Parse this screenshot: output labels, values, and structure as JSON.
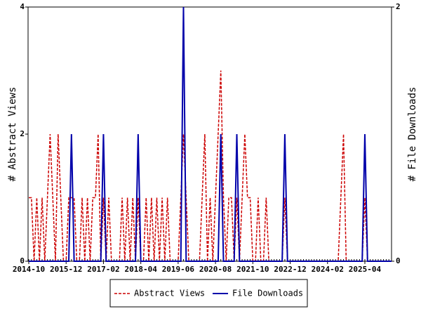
{
  "chart_data": {
    "type": "line",
    "x": [
      "2014-10",
      "2014-11",
      "2014-12",
      "2015-01",
      "2015-02",
      "2015-03",
      "2015-04",
      "2015-05",
      "2015-06",
      "2015-07",
      "2015-08",
      "2015-09",
      "2015-10",
      "2015-11",
      "2015-12",
      "2016-01",
      "2016-02",
      "2016-03",
      "2016-04",
      "2016-05",
      "2016-06",
      "2016-07",
      "2016-08",
      "2016-09",
      "2016-10",
      "2016-11",
      "2016-12",
      "2017-01",
      "2017-02",
      "2017-03",
      "2017-04",
      "2017-05",
      "2017-06",
      "2017-07",
      "2017-08",
      "2017-09",
      "2017-10",
      "2017-11",
      "2017-12",
      "2018-01",
      "2018-02",
      "2018-03",
      "2018-04",
      "2018-05",
      "2018-06",
      "2018-07",
      "2018-08",
      "2018-09",
      "2018-10",
      "2018-11",
      "2018-12",
      "2019-01",
      "2019-02",
      "2019-03",
      "2019-04",
      "2019-05",
      "2019-06",
      "2019-07",
      "2019-08",
      "2019-09",
      "2019-10",
      "2019-11",
      "2019-12",
      "2020-01",
      "2020-02",
      "2020-03",
      "2020-04",
      "2020-05",
      "2020-06",
      "2020-07",
      "2020-08",
      "2020-09",
      "2020-10",
      "2020-11",
      "2020-12",
      "2021-01",
      "2021-02",
      "2021-03",
      "2021-04",
      "2021-05",
      "2021-06",
      "2021-07",
      "2021-08",
      "2021-09",
      "2021-10",
      "2021-11",
      "2021-12",
      "2022-01",
      "2022-02",
      "2022-03",
      "2022-04",
      "2022-05",
      "2022-06",
      "2022-07",
      "2022-08",
      "2022-09",
      "2022-10",
      "2022-11",
      "2022-12",
      "2023-01",
      "2023-02",
      "2023-03",
      "2023-04",
      "2023-05",
      "2023-06",
      "2023-07",
      "2023-08",
      "2023-09",
      "2023-10",
      "2023-11",
      "2023-12",
      "2024-01",
      "2024-02",
      "2024-03",
      "2024-04",
      "2024-05",
      "2024-06",
      "2024-07",
      "2024-08",
      "2024-09",
      "2024-10",
      "2024-11",
      "2024-12",
      "2025-01",
      "2025-02",
      "2025-03",
      "2025-04",
      "2025-05",
      "2025-06",
      "2025-07",
      "2025-08",
      "2025-09",
      "2025-10",
      "2025-11",
      "2025-12",
      "2026-01",
      "2026-02"
    ],
    "xticks": [
      "2014-10",
      "2015-12",
      "2017-02",
      "2018-04",
      "2019-06",
      "2020-08",
      "2021-10",
      "2022-12",
      "2024-02",
      "2025-04"
    ],
    "ylabel": "# Abstract Views",
    "y2label": "# File Downloads",
    "ylim": [
      0,
      4
    ],
    "yticks": [
      0,
      2,
      4
    ],
    "y2lim": [
      0,
      2
    ],
    "y2ticks": [
      0,
      2
    ],
    "series": [
      {
        "name": "Abstract Views",
        "color": "#cc0000",
        "values": [
          1,
          1,
          0,
          1,
          0,
          1,
          0,
          1,
          2,
          1,
          0,
          2,
          1,
          0,
          0,
          1,
          1,
          1,
          0,
          0,
          1,
          0,
          1,
          0,
          1,
          1,
          2,
          0,
          1,
          0,
          1,
          0,
          0,
          0,
          0,
          1,
          0,
          1,
          0,
          1,
          0,
          1,
          0,
          0,
          1,
          0,
          1,
          0,
          1,
          0,
          1,
          0,
          1,
          0,
          0,
          0,
          0,
          1,
          2,
          1,
          0,
          0,
          0,
          0,
          0,
          1,
          2,
          0,
          1,
          0,
          1,
          2,
          3,
          1,
          0,
          1,
          1,
          0,
          1,
          0,
          1,
          2,
          1,
          1,
          0,
          0,
          1,
          0,
          0,
          1,
          0,
          0,
          0,
          0,
          0,
          0,
          1,
          0,
          0,
          0,
          0,
          0,
          0,
          0,
          0,
          0,
          0,
          0,
          0,
          0,
          0,
          0,
          0,
          0,
          0,
          0,
          0,
          1,
          2,
          0,
          0,
          0,
          0,
          0,
          0,
          0,
          1,
          0,
          0,
          0,
          0,
          0,
          0,
          0,
          0,
          0,
          0
        ]
      },
      {
        "name": "File Downloads",
        "color": "#0000aa",
        "axis": "y2",
        "values": [
          0,
          0,
          0,
          0,
          0,
          0,
          0,
          0,
          0,
          0,
          0,
          0,
          0,
          0,
          0,
          0,
          1,
          0,
          0,
          0,
          0,
          0,
          0,
          0,
          0,
          0,
          0,
          0,
          1,
          0,
          0,
          0,
          0,
          0,
          0,
          0,
          0,
          0,
          0,
          0,
          0,
          1,
          0,
          0,
          0,
          0,
          0,
          0,
          0,
          0,
          0,
          0,
          0,
          0,
          0,
          0,
          0,
          0,
          2,
          0,
          0,
          0,
          0,
          0,
          0,
          0,
          0,
          0,
          0,
          0,
          0,
          0,
          1,
          0,
          0,
          0,
          0,
          0,
          1,
          0,
          0,
          0,
          0,
          0,
          0,
          0,
          0,
          0,
          0,
          0,
          0,
          0,
          0,
          0,
          0,
          0,
          1,
          0,
          0,
          0,
          0,
          0,
          0,
          0,
          0,
          0,
          0,
          0,
          0,
          0,
          0,
          0,
          0,
          0,
          0,
          0,
          0,
          0,
          0,
          0,
          0,
          0,
          0,
          0,
          0,
          0,
          1,
          0,
          0,
          0,
          0,
          0,
          0,
          0,
          0,
          0,
          0
        ]
      }
    ]
  }
}
